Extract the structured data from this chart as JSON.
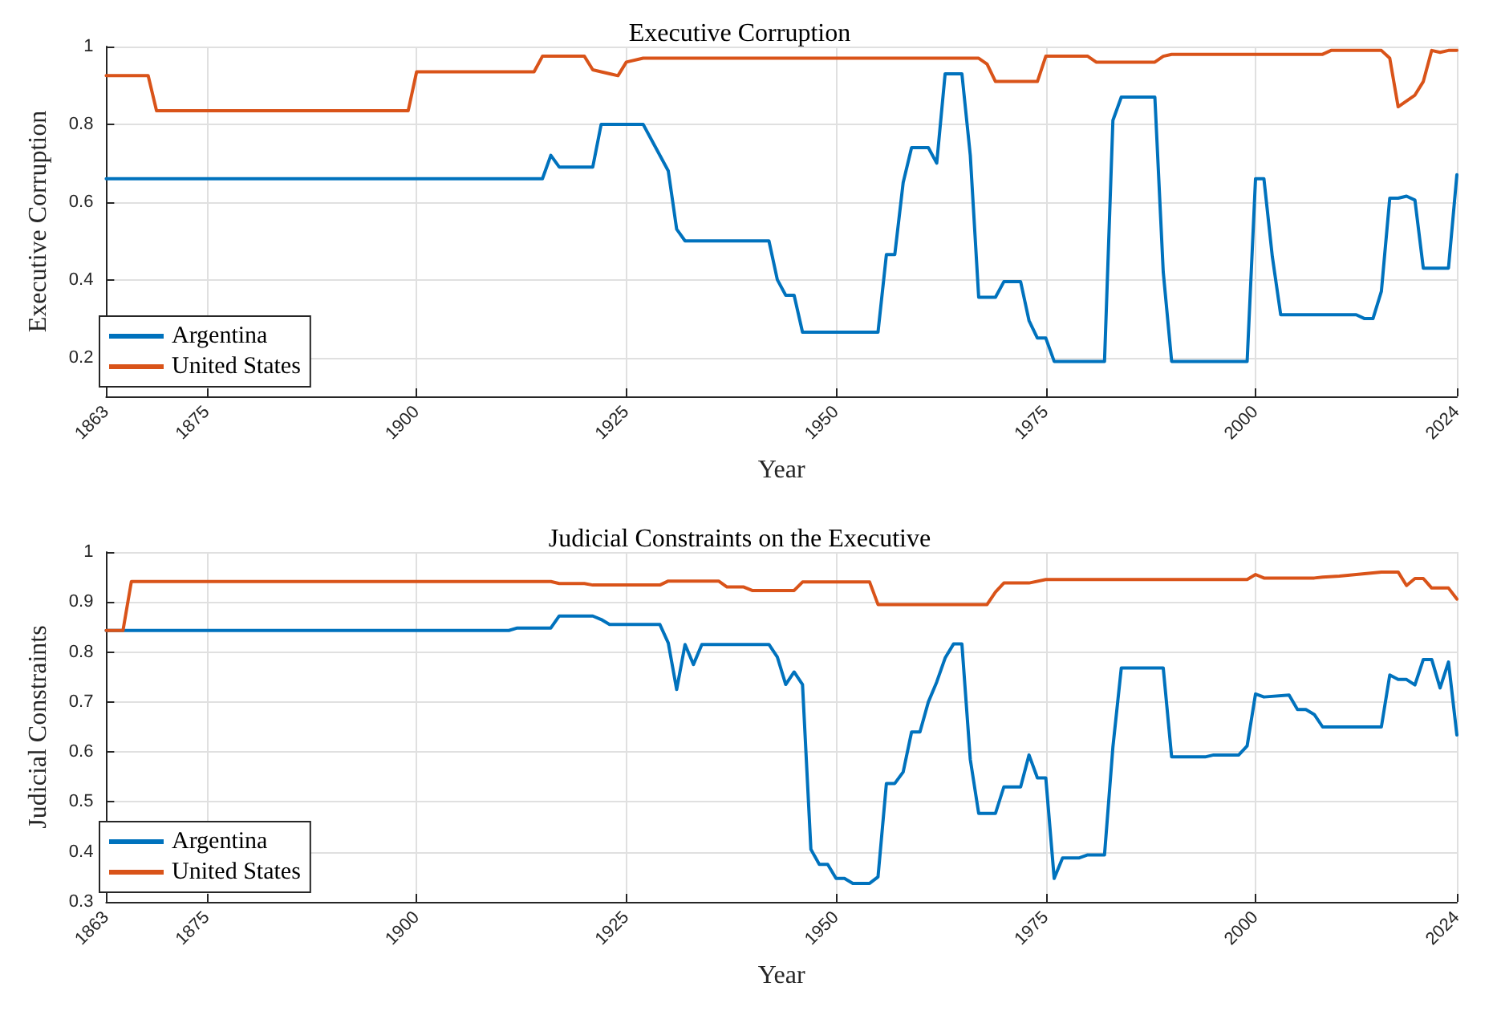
{
  "chart_data": [
    {
      "type": "line",
      "title": "Executive Corruption",
      "xlabel": "Year",
      "ylabel": "Executive Corruption",
      "xlim": [
        1863,
        2024
      ],
      "xticks": [
        1863,
        1875,
        1900,
        1925,
        1950,
        1975,
        2000,
        2024
      ],
      "ylim": [
        0.1,
        1
      ],
      "yticks": [
        0.2,
        0.4,
        0.6,
        0.8,
        1
      ],
      "grid": true,
      "legend": "bottom left",
      "marker": "none",
      "line_style": "solid",
      "series": [
        {
          "name": "Argentina",
          "color": "#0072bd",
          "x": [
            1863,
            1915,
            1916,
            1917,
            1921,
            1922,
            1927,
            1928,
            1930,
            1931,
            1932,
            1942,
            1943,
            1944,
            1945,
            1946,
            1955,
            1956,
            1957,
            1958,
            1959,
            1961,
            1962,
            1963,
            1965,
            1966,
            1967,
            1969,
            1970,
            1972,
            1973,
            1974,
            1975,
            1976,
            1982,
            1983,
            1984,
            1988,
            1989,
            1990,
            1999,
            2000,
            2001,
            2002,
            2003,
            2012,
            2013,
            2014,
            2015,
            2016,
            2017,
            2018,
            2019,
            2020,
            2023,
            2024
          ],
          "values": [
            0.66,
            0.66,
            0.72,
            0.69,
            0.69,
            0.8,
            0.8,
            0.76,
            0.68,
            0.53,
            0.5,
            0.5,
            0.4,
            0.36,
            0.36,
            0.265,
            0.265,
            0.465,
            0.465,
            0.65,
            0.74,
            0.74,
            0.7,
            0.93,
            0.93,
            0.72,
            0.355,
            0.355,
            0.395,
            0.395,
            0.295,
            0.25,
            0.25,
            0.19,
            0.19,
            0.81,
            0.87,
            0.87,
            0.42,
            0.19,
            0.19,
            0.66,
            0.66,
            0.46,
            0.31,
            0.31,
            0.3,
            0.3,
            0.37,
            0.61,
            0.61,
            0.615,
            0.605,
            0.43,
            0.43,
            0.67
          ]
        },
        {
          "name": "United States",
          "color": "#d95319",
          "x": [
            1863,
            1868,
            1869,
            1899,
            1900,
            1914,
            1915,
            1920,
            1921,
            1922,
            1924,
            1925,
            1927,
            1967,
            1968,
            1969,
            1974,
            1975,
            1980,
            1981,
            1988,
            1989,
            1990,
            2008,
            2009,
            2015,
            2016,
            2017,
            2019,
            2020,
            2021,
            2022,
            2023,
            2024
          ],
          "values": [
            0.925,
            0.925,
            0.835,
            0.835,
            0.935,
            0.935,
            0.975,
            0.975,
            0.94,
            0.935,
            0.925,
            0.96,
            0.97,
            0.97,
            0.955,
            0.91,
            0.91,
            0.975,
            0.975,
            0.96,
            0.96,
            0.975,
            0.98,
            0.98,
            0.99,
            0.99,
            0.97,
            0.845,
            0.875,
            0.91,
            0.99,
            0.985,
            0.99,
            0.99
          ]
        }
      ]
    },
    {
      "type": "line",
      "title": "Judicial Constraints on the Executive",
      "xlabel": "Year",
      "ylabel": "Judicial Constraints",
      "xlim": [
        1863,
        2024
      ],
      "xticks": [
        1863,
        1875,
        1900,
        1925,
        1950,
        1975,
        2000,
        2024
      ],
      "ylim": [
        0.3,
        1
      ],
      "yticks": [
        0.3,
        0.4,
        0.5,
        0.6,
        0.7,
        0.8,
        0.9,
        1
      ],
      "grid": true,
      "legend": "bottom left",
      "marker": "none",
      "line_style": "solid",
      "series": [
        {
          "name": "Argentina",
          "color": "#0072bd",
          "x": [
            1863,
            1911,
            1912,
            1916,
            1917,
            1921,
            1922,
            1923,
            1929,
            1930,
            1931,
            1932,
            1933,
            1934,
            1942,
            1943,
            1944,
            1945,
            1946,
            1947,
            1948,
            1949,
            1950,
            1951,
            1952,
            1954,
            1955,
            1956,
            1957,
            1958,
            1959,
            1960,
            1961,
            1962,
            1963,
            1964,
            1965,
            1966,
            1967,
            1969,
            1970,
            1972,
            1973,
            1974,
            1975,
            1976,
            1977,
            1979,
            1980,
            1982,
            1983,
            1984,
            1989,
            1990,
            1994,
            1995,
            1998,
            1999,
            2000,
            2001,
            2004,
            2005,
            2006,
            2007,
            2008,
            2015,
            2016,
            2017,
            2018,
            2019,
            2020,
            2021,
            2022,
            2023,
            2024
          ],
          "values": [
            0.843,
            0.843,
            0.848,
            0.848,
            0.872,
            0.872,
            0.865,
            0.855,
            0.855,
            0.818,
            0.725,
            0.815,
            0.775,
            0.815,
            0.815,
            0.79,
            0.735,
            0.76,
            0.735,
            0.405,
            0.375,
            0.375,
            0.347,
            0.347,
            0.337,
            0.337,
            0.35,
            0.537,
            0.537,
            0.56,
            0.64,
            0.64,
            0.7,
            0.74,
            0.788,
            0.816,
            0.816,
            0.585,
            0.477,
            0.477,
            0.53,
            0.53,
            0.594,
            0.548,
            0.548,
            0.347,
            0.388,
            0.388,
            0.394,
            0.394,
            0.61,
            0.768,
            0.768,
            0.59,
            0.59,
            0.594,
            0.594,
            0.612,
            0.716,
            0.71,
            0.714,
            0.685,
            0.685,
            0.675,
            0.65,
            0.65,
            0.754,
            0.745,
            0.745,
            0.734,
            0.785,
            0.785,
            0.728,
            0.78,
            0.634
          ]
        },
        {
          "name": "United States",
          "color": "#d95319",
          "x": [
            1863,
            1865,
            1866,
            1916,
            1917,
            1920,
            1921,
            1929,
            1930,
            1936,
            1937,
            1939,
            1940,
            1945,
            1946,
            1954,
            1955,
            1968,
            1969,
            1970,
            1973,
            1975,
            1999,
            2000,
            2001,
            2007,
            2008,
            2010,
            2012,
            2015,
            2017,
            2018,
            2019,
            2020,
            2021,
            2023,
            2024
          ],
          "values": [
            0.843,
            0.843,
            0.941,
            0.941,
            0.937,
            0.937,
            0.934,
            0.934,
            0.942,
            0.942,
            0.93,
            0.93,
            0.923,
            0.923,
            0.94,
            0.94,
            0.895,
            0.895,
            0.92,
            0.938,
            0.938,
            0.945,
            0.945,
            0.955,
            0.948,
            0.948,
            0.95,
            0.952,
            0.955,
            0.96,
            0.96,
            0.933,
            0.947,
            0.947,
            0.928,
            0.928,
            0.906
          ]
        }
      ]
    }
  ]
}
